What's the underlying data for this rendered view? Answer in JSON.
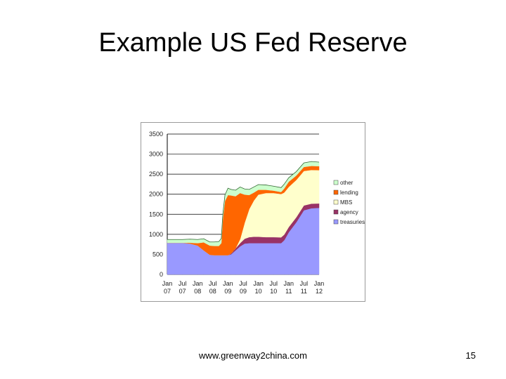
{
  "slide": {
    "title": "Example US Fed Reserve",
    "footer_url": "www.greenway2china.com",
    "page_number": "15"
  },
  "chart_data": {
    "type": "area",
    "stacked": true,
    "title": "",
    "xlabel": "",
    "ylabel": "",
    "ylim": [
      0,
      3500
    ],
    "yticks": [
      0,
      500,
      1000,
      1500,
      2000,
      2500,
      3000,
      3500
    ],
    "xlim": [
      2007.0,
      2012.0
    ],
    "xticks": [
      {
        "x": 2007.0,
        "line1": "Jan",
        "line2": "07"
      },
      {
        "x": 2007.5,
        "line1": "Jul",
        "line2": "07"
      },
      {
        "x": 2008.0,
        "line1": "Jan",
        "line2": "08"
      },
      {
        "x": 2008.5,
        "line1": "Jul",
        "line2": "08"
      },
      {
        "x": 2009.0,
        "line1": "Jan",
        "line2": "09"
      },
      {
        "x": 2009.5,
        "line1": "Jul",
        "line2": "09"
      },
      {
        "x": 2010.0,
        "line1": "Jan",
        "line2": "10"
      },
      {
        "x": 2010.5,
        "line1": "Jul",
        "line2": "10"
      },
      {
        "x": 2011.0,
        "line1": "Jan",
        "line2": "11"
      },
      {
        "x": 2011.5,
        "line1": "Jul",
        "line2": "11"
      },
      {
        "x": 2012.0,
        "line1": "Jan",
        "line2": "12"
      }
    ],
    "grid": "horizontal",
    "legend_position": "right",
    "x": [
      2007.0,
      2007.25,
      2007.5,
      2007.75,
      2008.0,
      2008.2,
      2008.4,
      2008.55,
      2008.7,
      2008.78,
      2008.83,
      2008.9,
      2009.0,
      2009.1,
      2009.25,
      2009.4,
      2009.55,
      2009.7,
      2009.85,
      2010.0,
      2010.25,
      2010.5,
      2010.75,
      2010.85,
      2011.0,
      2011.25,
      2011.5,
      2011.75,
      2012.0
    ],
    "series": [
      {
        "name": "treasuries",
        "color": "#9999ff",
        "values": [
          790,
          790,
          790,
          770,
          720,
          600,
          490,
          480,
          480,
          480,
          480,
          480,
          480,
          500,
          600,
          700,
          770,
          780,
          780,
          780,
          780,
          780,
          780,
          850,
          1050,
          1300,
          1600,
          1650,
          1660
        ]
      },
      {
        "name": "agency",
        "color": "#993366",
        "values": [
          0,
          0,
          0,
          0,
          0,
          0,
          0,
          0,
          0,
          0,
          0,
          0,
          0,
          20,
          50,
          80,
          120,
          150,
          160,
          160,
          150,
          150,
          145,
          140,
          130,
          125,
          120,
          115,
          110
        ]
      },
      {
        "name": "MBS",
        "color": "#ffffcc",
        "values": [
          0,
          0,
          0,
          0,
          0,
          0,
          0,
          0,
          0,
          0,
          0,
          0,
          0,
          0,
          0,
          100,
          400,
          700,
          900,
          1050,
          1100,
          1100,
          1080,
          1050,
          1000,
          930,
          860,
          840,
          830
        ]
      },
      {
        "name": "lending",
        "color": "#ff6600",
        "values": [
          0,
          0,
          0,
          20,
          60,
          200,
          230,
          230,
          230,
          300,
          900,
          1350,
          1500,
          1450,
          1300,
          1150,
          700,
          350,
          200,
          120,
          80,
          60,
          50,
          100,
          130,
          110,
          100,
          100,
          100
        ]
      },
      {
        "name": "other",
        "color": "#ccffcc",
        "values": [
          80,
          80,
          80,
          90,
          90,
          90,
          90,
          100,
          110,
          120,
          120,
          150,
          170,
          150,
          150,
          150,
          140,
          140,
          140,
          130,
          120,
          110,
          110,
          110,
          100,
          100,
          100,
          110,
          100
        ]
      }
    ]
  }
}
